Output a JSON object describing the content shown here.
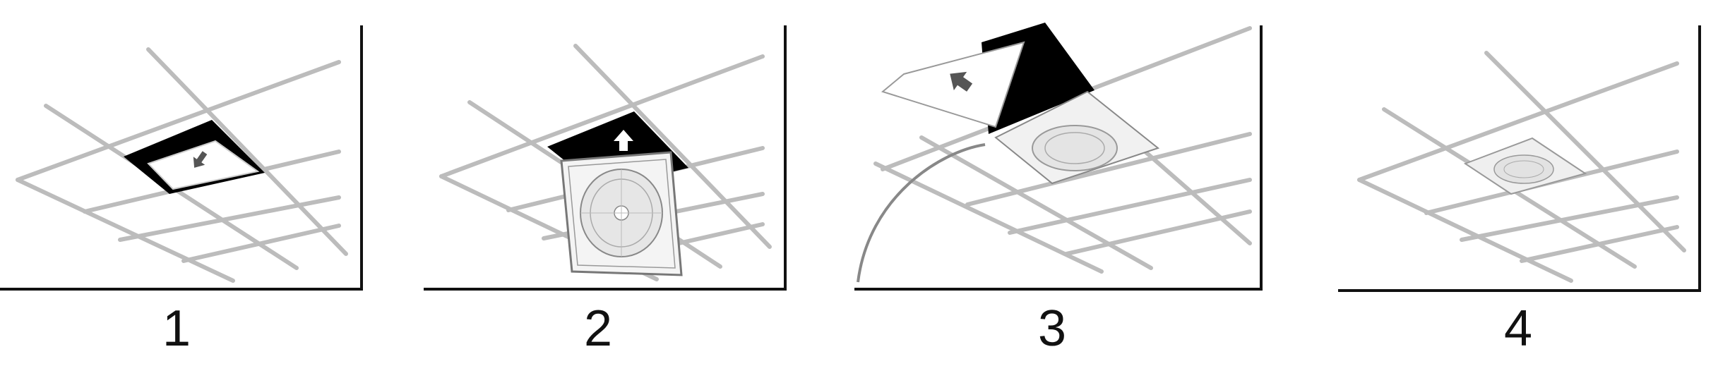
{
  "steps": [
    {
      "number": "1"
    },
    {
      "number": "2"
    },
    {
      "number": "3"
    },
    {
      "number": "4"
    }
  ],
  "colors": {
    "grid": "#bcbcbc",
    "opening": "#000000",
    "frame": "#111111",
    "panel": "#f4f4f4"
  }
}
